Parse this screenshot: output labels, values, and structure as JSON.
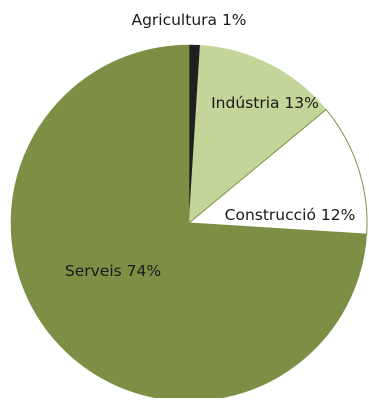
{
  "chart_data": {
    "type": "pie",
    "title": "",
    "legend": "none",
    "slices": [
      {
        "label": "Agricultura",
        "value": 1,
        "data_label": "Agricultura 1%",
        "color": "#1f1f1f",
        "stroke": "#1f1f1f"
      },
      {
        "label": "Indústria",
        "value": 13,
        "data_label": "Indústria 13%",
        "color": "#c4d59a",
        "stroke": "#c4d59a"
      },
      {
        "label": "Construcció",
        "value": 12,
        "data_label": "Construcció 12%",
        "color": "#ffffff",
        "stroke": "#7d8f45"
      },
      {
        "label": "Serveis",
        "value": 74,
        "data_label": "Serveis 74%",
        "color": "#7d8f45",
        "stroke": "#7d8f45"
      }
    ]
  }
}
